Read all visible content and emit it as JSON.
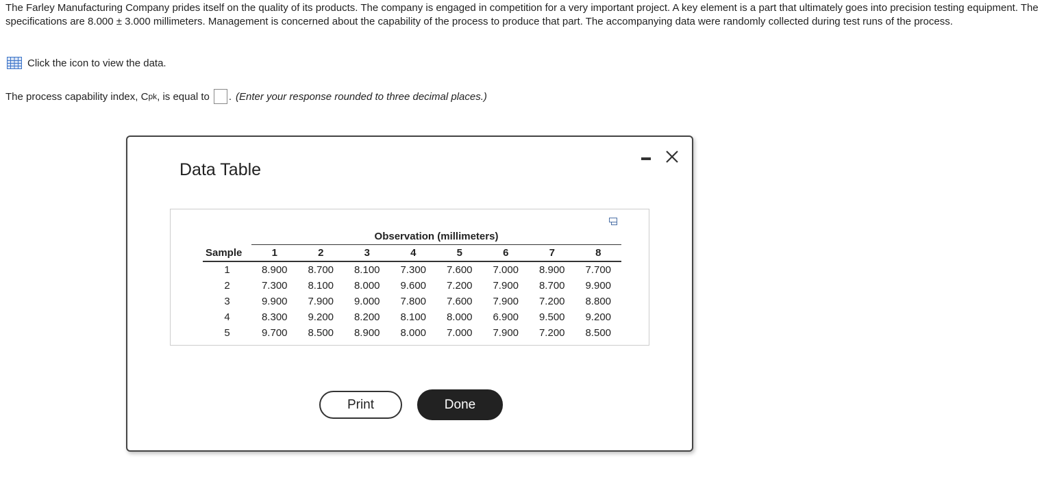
{
  "problem": {
    "text": "The Farley Manufacturing Company prides itself on the quality of its products. The company is engaged in competition for a very important project. A key element is a part that ultimately goes into precision testing equipment. The specifications are 8.000 ± 3.000 millimeters. Management is concerned about the capability of the process to produce that part. The accompanying data were randomly collected during test runs of the process.",
    "data_link": "Click the icon to view the data.",
    "question_start": "The process capability index, C",
    "question_subscript": "pk",
    "question_mid": ", is equal to",
    "question_end": ".",
    "question_hint": "(Enter your response rounded to three decimal places.)"
  },
  "dialog": {
    "title": "Data Table",
    "table": {
      "group_header": "Observation (millimeters)",
      "columns": [
        "Sample",
        "1",
        "2",
        "3",
        "4",
        "5",
        "6",
        "7",
        "8"
      ],
      "rows": [
        [
          "1",
          "8.900",
          "8.700",
          "8.100",
          "7.300",
          "7.600",
          "7.000",
          "8.900",
          "7.700"
        ],
        [
          "2",
          "7.300",
          "8.100",
          "8.000",
          "9.600",
          "7.200",
          "7.900",
          "8.700",
          "9.900"
        ],
        [
          "3",
          "9.900",
          "7.900",
          "9.000",
          "7.800",
          "7.600",
          "7.900",
          "7.200",
          "8.800"
        ],
        [
          "4",
          "8.300",
          "9.200",
          "8.200",
          "8.100",
          "8.000",
          "6.900",
          "9.500",
          "9.200"
        ],
        [
          "5",
          "9.700",
          "8.500",
          "8.900",
          "8.000",
          "7.000",
          "7.900",
          "7.200",
          "8.500"
        ]
      ]
    },
    "buttons": [
      "Print",
      "Done"
    ]
  }
}
